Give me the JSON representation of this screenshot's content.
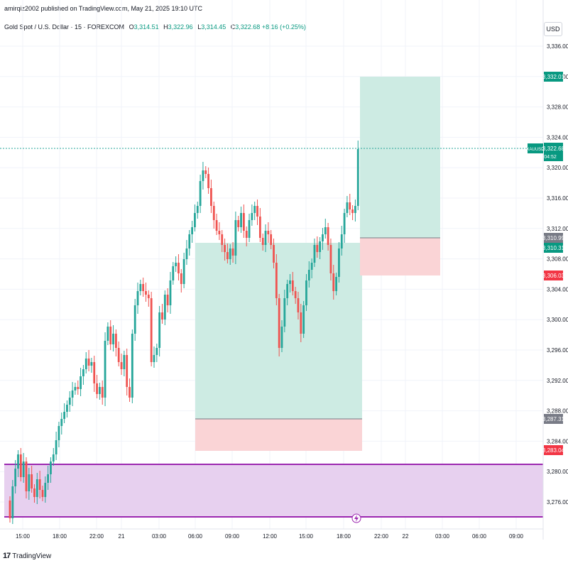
{
  "header": {
    "published_by": "amirqiz2002 published on TradingView.com, May 21, 2025 19:10 UTC"
  },
  "legend": {
    "symbol_title": "Gold Spot / U.S. Dollar · 15 · FOREXCOM",
    "open_label": "O",
    "open_value": "3,314.51",
    "high_label": "H",
    "high_value": "3,322.96",
    "low_label": "L",
    "low_value": "3,314.45",
    "close_label": "C",
    "close_value": "3,322.68",
    "change": "+8.16 (+0.25%)"
  },
  "currency_button": "USD",
  "price_axis": {
    "ticks": [
      "3,336.00",
      "3,332.00",
      "3,328.00",
      "3,324.00",
      "3,320.00",
      "3,316.00",
      "3,312.00",
      "3,308.00",
      "3,304.00",
      "3,300.00",
      "3,296.00",
      "3,292.00",
      "3,288.00",
      "3,284.00",
      "3,280.00",
      "3,276.00"
    ]
  },
  "price_labels": {
    "target1": "3,332.01",
    "symbol_tag": "XAUUSD",
    "current_price": "3,322.68",
    "countdown": "04:52",
    "entry2_a": "3,310.99",
    "entry2_b": "3,310.31",
    "stop2": "3,306.03",
    "entry1": "3,287.31",
    "stop1": "3,283.04"
  },
  "time_axis": {
    "labels": [
      "15:00",
      "18:00",
      "22:00",
      "21",
      "03:00",
      "06:00",
      "09:00",
      "12:00",
      "15:00",
      "18:00",
      "22:00",
      "22",
      "03:00",
      "06:00",
      "09:00"
    ]
  },
  "footer": {
    "logo_text": "TradingView",
    "logo_mark": "17"
  },
  "colors": {
    "bull": "#26a69a",
    "bear": "#ef5350",
    "profit_zone": "#cdebe3",
    "loss_zone": "#fad4d6",
    "demand_zone": "#e7d0ef",
    "demand_border": "#9c27b0"
  },
  "icons": {
    "alert": "lightning-icon"
  }
}
